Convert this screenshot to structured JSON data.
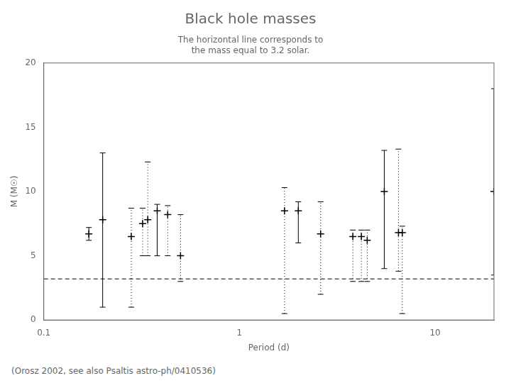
{
  "chart_data": {
    "type": "scatter",
    "title": "Black hole masses",
    "subtitle": "The horizontal line corresponds to\nthe mass equal to 3.2 solar.",
    "annotations": [
      "(Orosz 2002, see also Psaltis astro-ph/0410536)"
    ],
    "xlabel": "Period (d)",
    "ylabel": "M (M☉)",
    "log": "x",
    "xlim": [
      0.1,
      20
    ],
    "ylim": [
      0,
      20
    ],
    "xticks": [
      0.1,
      1,
      10
    ],
    "yticks": [
      0,
      5,
      10,
      15,
      20
    ],
    "grid": false,
    "hline": 3.2,
    "series": [
      {
        "line_style": "solid",
        "marker": "plus",
        "color": "#000000",
        "x": [
          0.17,
          0.2,
          0.38,
          2.0,
          5.5,
          20.0
        ],
        "values": [
          6.7,
          7.8,
          8.5,
          8.5,
          10.0,
          10.0
        ],
        "yerr_lo": [
          0.5,
          6.8,
          3.5,
          2.5,
          6.0,
          6.5
        ],
        "yerr_hi": [
          0.5,
          5.2,
          0.5,
          0.7,
          3.2,
          8.0
        ]
      },
      {
        "line_style": "dotted",
        "marker": "plus",
        "color": "#000000",
        "x": [
          0.28,
          0.32,
          0.34,
          0.43,
          0.5,
          1.7,
          2.6,
          3.8,
          4.2,
          4.5,
          6.5,
          6.8
        ],
        "values": [
          6.5,
          7.5,
          7.8,
          8.2,
          5.0,
          8.5,
          6.7,
          6.5,
          6.5,
          6.2,
          6.8,
          6.8
        ],
        "yerr_lo": [
          5.5,
          2.5,
          2.8,
          3.2,
          2.0,
          8.0,
          4.7,
          3.5,
          3.5,
          3.2,
          3.0,
          6.3
        ],
        "yerr_hi": [
          2.2,
          1.2,
          4.5,
          0.7,
          3.2,
          1.8,
          2.5,
          0.5,
          0.5,
          0.8,
          6.5,
          0.5
        ]
      }
    ]
  }
}
